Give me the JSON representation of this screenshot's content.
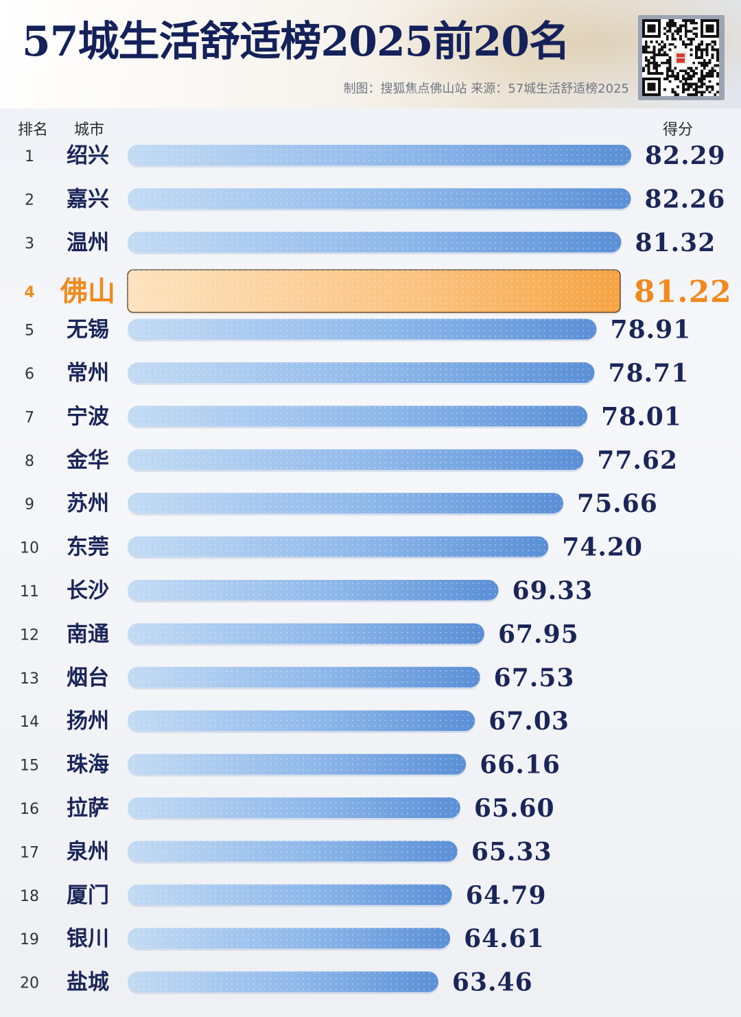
{
  "header": {
    "title": "57城生活舒适榜2025前20名",
    "credit": "制图：搜狐焦点佛山站 来源：57城生活舒适榜2025"
  },
  "colors": {
    "title": "#14215a",
    "bar_light": "#bcd6f2",
    "bar_dark": "#5d92d8",
    "highlight_light": "#fdd6a6",
    "highlight_dark": "#f6a94e",
    "highlight_text": "#f08a1c"
  },
  "chart_data": {
    "type": "bar",
    "orientation": "horizontal",
    "column_headers": {
      "rank": "排名",
      "city": "城市",
      "score": "得分"
    },
    "highlight_rank": 4,
    "rows": [
      {
        "rank": "1",
        "city": "绍兴",
        "value": 82.29,
        "label": "82.29"
      },
      {
        "rank": "2",
        "city": "嘉兴",
        "value": 82.26,
        "label": "82.26"
      },
      {
        "rank": "3",
        "city": "温州",
        "value": 81.32,
        "label": "81.32"
      },
      {
        "rank": "4",
        "city": "佛山",
        "value": 81.22,
        "label": "81.22"
      },
      {
        "rank": "5",
        "city": "无锡",
        "value": 78.91,
        "label": "78.91"
      },
      {
        "rank": "6",
        "city": "常州",
        "value": 78.71,
        "label": "78.71"
      },
      {
        "rank": "7",
        "city": "宁波",
        "value": 78.01,
        "label": "78.01"
      },
      {
        "rank": "8",
        "city": "金华",
        "value": 77.62,
        "label": "77.62"
      },
      {
        "rank": "9",
        "city": "苏州",
        "value": 75.66,
        "label": "75.66"
      },
      {
        "rank": "10",
        "city": "东莞",
        "value": 74.2,
        "label": "74.20"
      },
      {
        "rank": "11",
        "city": "长沙",
        "value": 69.33,
        "label": "69.33"
      },
      {
        "rank": "12",
        "city": "南通",
        "value": 67.95,
        "label": "67.95"
      },
      {
        "rank": "13",
        "city": "烟台",
        "value": 67.53,
        "label": "67.53"
      },
      {
        "rank": "14",
        "city": "扬州",
        "value": 67.03,
        "label": "67.03"
      },
      {
        "rank": "15",
        "city": "珠海",
        "value": 66.16,
        "label": "66.16"
      },
      {
        "rank": "16",
        "city": "拉萨",
        "value": 65.6,
        "label": "65.60"
      },
      {
        "rank": "17",
        "city": "泉州",
        "value": 65.33,
        "label": "65.33"
      },
      {
        "rank": "18",
        "city": "厦门",
        "value": 64.79,
        "label": "64.79"
      },
      {
        "rank": "19",
        "city": "银川",
        "value": 64.61,
        "label": "64.61"
      },
      {
        "rank": "20",
        "city": "盐城",
        "value": 63.46,
        "label": "63.46"
      }
    ]
  }
}
